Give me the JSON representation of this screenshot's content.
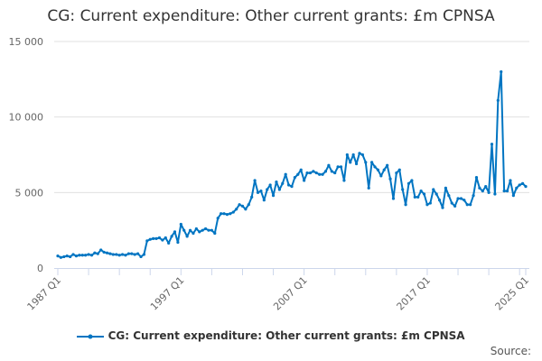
{
  "chart_data": {
    "type": "line",
    "title": "CG: Current expenditure: Other current grants: £m CPNSA",
    "x_start": "1987 Q1",
    "x_end": "2025 Q1",
    "x_tick_labels": [
      "1987 Q1",
      "1997 Q1",
      "2007 Q1",
      "2017 Q1",
      "2025 Q1"
    ],
    "y_tick_labels": [
      "0",
      "5 000",
      "10 000",
      "15 000"
    ],
    "ylim": [
      0,
      15000
    ],
    "grid": "horizontal",
    "legend_placement": "bottom",
    "color": "#0075c2",
    "series": [
      {
        "name": "CG: Current expenditure: Other current grants: £m CPNSA",
        "values": [
          800,
          700,
          750,
          800,
          750,
          900,
          800,
          850,
          850,
          850,
          900,
          850,
          1000,
          950,
          1200,
          1050,
          1000,
          950,
          900,
          900,
          850,
          900,
          850,
          950,
          950,
          900,
          950,
          750,
          900,
          1800,
          1900,
          1950,
          1950,
          2000,
          1850,
          2000,
          1650,
          2100,
          2400,
          1700,
          2900,
          2500,
          2100,
          2500,
          2300,
          2600,
          2400,
          2500,
          2600,
          2500,
          2500,
          2300,
          3300,
          3600,
          3600,
          3550,
          3600,
          3700,
          3900,
          4200,
          4100,
          3900,
          4200,
          4700,
          5800,
          5000,
          5100,
          4500,
          5200,
          5500,
          4800,
          5700,
          5200,
          5600,
          6200,
          5500,
          5400,
          6000,
          6200,
          6500,
          5800,
          6300,
          6300,
          6400,
          6300,
          6200,
          6200,
          6400,
          6800,
          6400,
          6300,
          6700,
          6700,
          5800,
          7500,
          7000,
          7500,
          6900,
          7600,
          7500,
          7000,
          5300,
          7000,
          6700,
          6500,
          6100,
          6500,
          6800,
          5900,
          4600,
          6300,
          6500,
          5200,
          4200,
          5600,
          5800,
          4700,
          4700,
          5100,
          4900,
          4200,
          4300,
          5200,
          4900,
          4500,
          4000,
          5300,
          4800,
          4300,
          4100,
          4600,
          4600,
          4500,
          4200,
          4200,
          4800,
          6000,
          5300,
          5100,
          5400,
          5000,
          8200,
          4900,
          11100,
          13000,
          5100,
          5100,
          5800,
          4800,
          5300,
          5500,
          5600,
          5400
        ]
      }
    ]
  },
  "source_label": "Source:"
}
